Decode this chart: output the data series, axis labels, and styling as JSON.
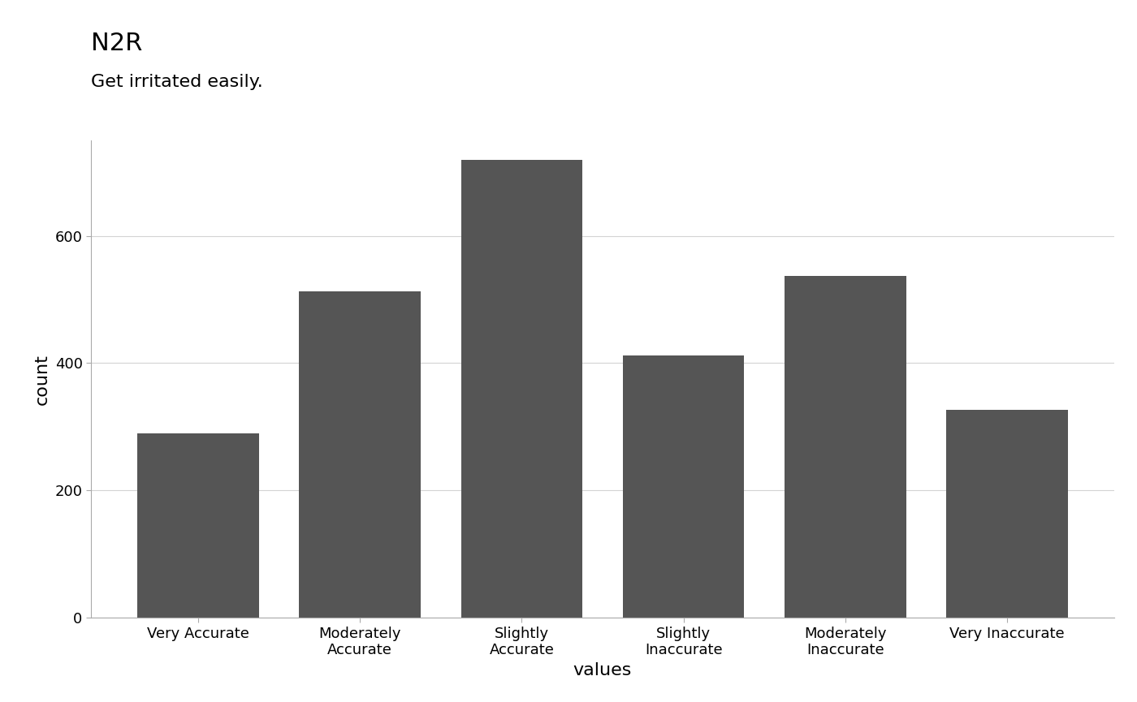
{
  "title": "N2R",
  "subtitle": "Get irritated easily.",
  "xlabel": "values",
  "ylabel": "count",
  "categories": [
    "Very Accurate",
    "Moderately\nAccurate",
    "Slightly\nAccurate",
    "Slightly\nInaccurate",
    "Moderately\nInaccurate",
    "Very Inaccurate"
  ],
  "values": [
    290,
    513,
    720,
    412,
    537,
    327
  ],
  "bar_color": "#555555",
  "background_color": "#ffffff",
  "grid_color": "#d3d3d3",
  "ylim": [
    0,
    750
  ],
  "yticks": [
    0,
    200,
    400,
    600
  ],
  "title_fontsize": 22,
  "subtitle_fontsize": 16,
  "axis_label_fontsize": 16,
  "tick_fontsize": 13,
  "bar_width": 0.75
}
